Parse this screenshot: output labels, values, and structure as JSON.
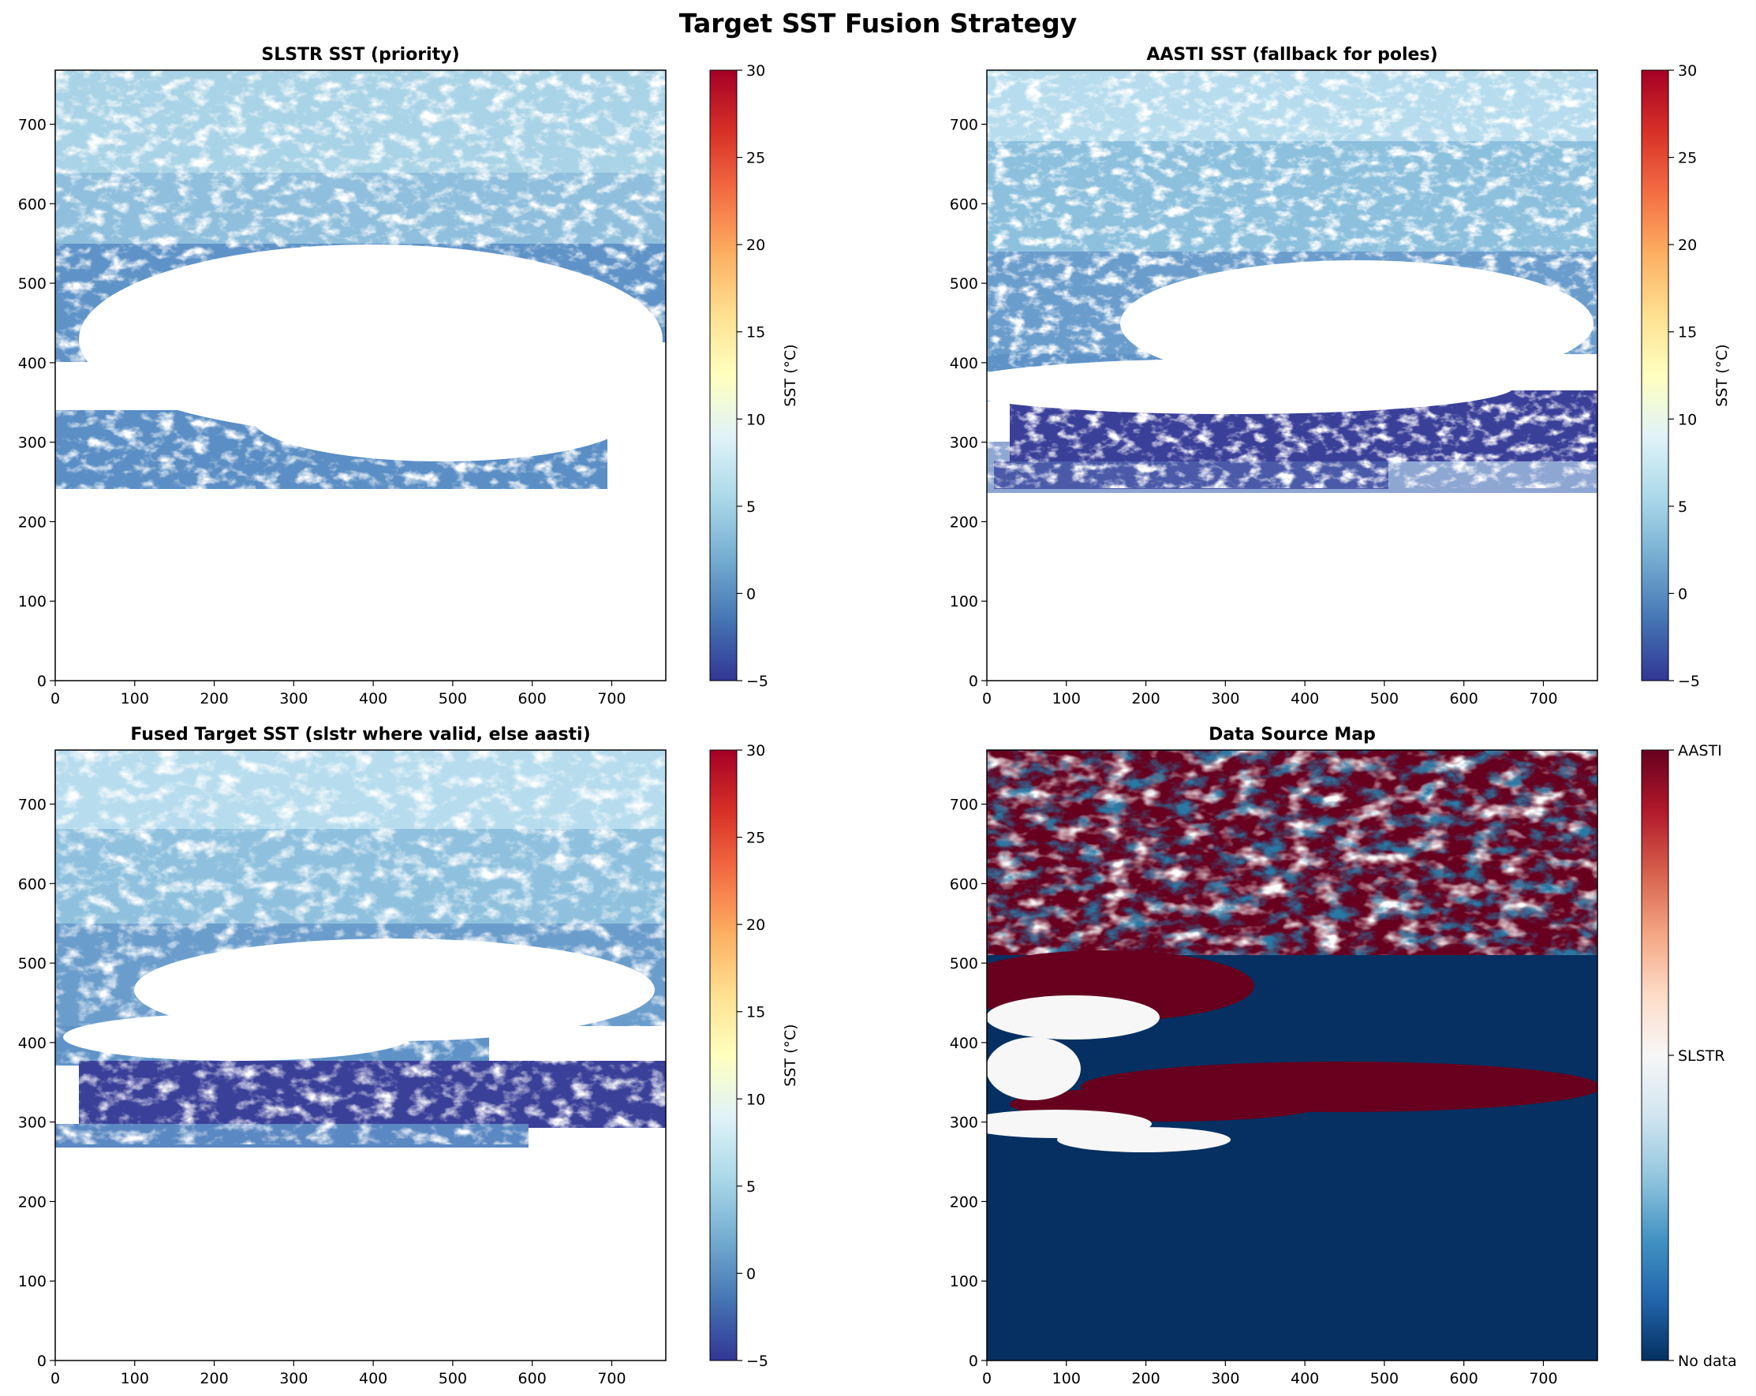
{
  "figure": {
    "title": "Target SST Fusion Strategy"
  },
  "colors": {
    "rdylbu_r": [
      "#313695",
      "#4575b4",
      "#74add1",
      "#abd9e9",
      "#e0f3f8",
      "#ffffbf",
      "#fee090",
      "#fdae61",
      "#f46d43",
      "#d73027",
      "#a50026"
    ],
    "rdbu_r": [
      "#053061",
      "#2166ac",
      "#4393c3",
      "#92c5de",
      "#d1e5f0",
      "#f7f7f7",
      "#fddbc7",
      "#f4a582",
      "#d6604d",
      "#b2182b",
      "#67001f"
    ]
  },
  "chart_data": [
    {
      "type": "heatmap",
      "title": "SLSTR SST (priority)",
      "xlim": [
        0,
        768
      ],
      "ylim": [
        0,
        768
      ],
      "xticks": [
        "0",
        "100",
        "200",
        "300",
        "400",
        "500",
        "600",
        "700"
      ],
      "yticks": [
        "0",
        "100",
        "200",
        "300",
        "400",
        "500",
        "600",
        "700"
      ],
      "colorbar": {
        "label": "SST (°C)",
        "range": [
          -5,
          30
        ],
        "ticks": [
          "−5",
          "0",
          "5",
          "10",
          "15",
          "20",
          "25",
          "30"
        ],
        "cmap": "RdYlBu_r"
      },
      "regions": [
        {
          "desc": "blue-teal fill",
          "y_range": [
            580,
            768
          ],
          "sst": 5
        },
        {
          "desc": "mid blue fill",
          "y_range": [
            430,
            580
          ],
          "sst": 1
        },
        {
          "desc": "blue band",
          "y_range": [
            240,
            330
          ],
          "sst": 0
        },
        {
          "desc": "no data (white)",
          "y_range": [
            0,
            240
          ]
        }
      ]
    },
    {
      "type": "heatmap",
      "title": "AASTI SST (fallback for poles)",
      "xlim": [
        0,
        768
      ],
      "ylim": [
        0,
        768
      ],
      "xticks": [
        "0",
        "100",
        "200",
        "300",
        "400",
        "500",
        "600",
        "700"
      ],
      "yticks": [
        "0",
        "100",
        "200",
        "300",
        "400",
        "500",
        "600",
        "700"
      ],
      "colorbar": {
        "label": "SST (°C)",
        "range": [
          -5,
          30
        ],
        "ticks": [
          "−5",
          "0",
          "5",
          "10",
          "15",
          "20",
          "25",
          "30"
        ],
        "cmap": "RdYlBu_r"
      },
      "regions": [
        {
          "desc": "light blue",
          "y_range": [
            600,
            768
          ],
          "sst": 6
        },
        {
          "desc": "mid blue",
          "y_range": [
            420,
            600
          ],
          "sst": 2
        },
        {
          "desc": "deep blue cold band",
          "y_range": [
            280,
            380
          ],
          "sst": -4
        },
        {
          "desc": "blue strip",
          "y_range": [
            240,
            300
          ],
          "sst": 0
        },
        {
          "desc": "no data (white)",
          "y_range": [
            0,
            240
          ]
        }
      ]
    },
    {
      "type": "heatmap",
      "title": "Fused Target SST (slstr where valid, else aasti)",
      "xlim": [
        0,
        768
      ],
      "ylim": [
        0,
        768
      ],
      "xticks": [
        "0",
        "100",
        "200",
        "300",
        "400",
        "500",
        "600",
        "700"
      ],
      "yticks": [
        "0",
        "100",
        "200",
        "300",
        "400",
        "500",
        "600",
        "700"
      ],
      "colorbar": {
        "label": "SST (°C)",
        "range": [
          -5,
          30
        ],
        "ticks": [
          "−5",
          "0",
          "5",
          "10",
          "15",
          "20",
          "25",
          "30"
        ],
        "cmap": "RdYlBu_r"
      },
      "regions": [
        {
          "desc": "light blue",
          "y_range": [
            600,
            768
          ],
          "sst": 6
        },
        {
          "desc": "mid blue",
          "y_range": [
            430,
            600
          ],
          "sst": 2
        },
        {
          "desc": "deep blue cold band",
          "y_range": [
            280,
            380
          ],
          "sst": -4
        },
        {
          "desc": "blue strip",
          "y_range": [
            240,
            300
          ],
          "sst": 0
        },
        {
          "desc": "no data (white)",
          "y_range": [
            0,
            240
          ]
        }
      ]
    },
    {
      "type": "heatmap",
      "title": "Data Source Map",
      "xlim": [
        0,
        768
      ],
      "ylim": [
        0,
        768
      ],
      "xticks": [
        "0",
        "100",
        "200",
        "300",
        "400",
        "500",
        "600",
        "700"
      ],
      "yticks": [
        "0",
        "100",
        "200",
        "300",
        "400",
        "500",
        "600",
        "700"
      ],
      "colorbar": {
        "label": "",
        "range": [
          0,
          2
        ],
        "ticks": [
          "No data",
          "SLSTR",
          "AASTI"
        ],
        "cmap": "RdBu_r"
      },
      "categories": [
        "No data",
        "SLSTR",
        "AASTI"
      ],
      "regions": [
        {
          "desc": "mixed SLSTR / AASTI",
          "y_range": [
            500,
            768
          ]
        },
        {
          "desc": "AASTI band",
          "y_range": [
            280,
            380
          ]
        },
        {
          "desc": "No data",
          "y_range": [
            0,
            240
          ]
        }
      ]
    }
  ]
}
